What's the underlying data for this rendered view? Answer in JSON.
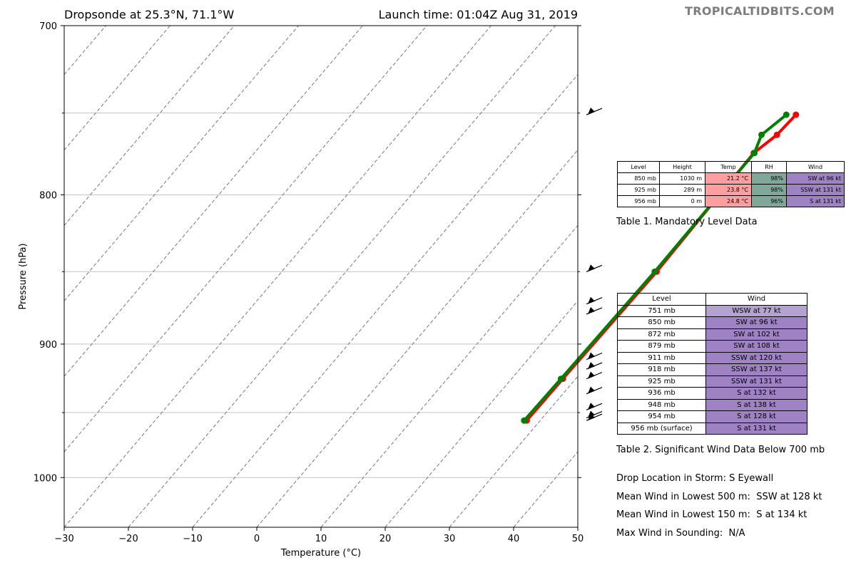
{
  "header": {
    "title_left": "Dropsonde at 25.3°N, 71.1°W",
    "title_right": "Launch time: 01:04Z Aug 31, 2019",
    "brand": "TROPICALTIDBITS.COM"
  },
  "chart_data": {
    "type": "line",
    "xlabel": "Temperature (°C)",
    "ylabel": "Pressure (hPa)",
    "xlim": [
      -30,
      50
    ],
    "ylim": [
      1040,
      700
    ],
    "y_scale": "log",
    "x_ticks": [
      "−30",
      "−20",
      "−10",
      "0",
      "10",
      "20",
      "30",
      "40",
      "50"
    ],
    "y_ticks": [
      "700",
      "800",
      "900",
      "1000"
    ],
    "gridlines_pressure": [
      750,
      800,
      850,
      900,
      950,
      1000
    ],
    "series": [
      {
        "color": "#ff0000",
        "p": [
          751,
          763,
          774,
          850,
          925,
          956
        ],
        "t": [
          29.3,
          29.0,
          27.8,
          28.4,
          28.0,
          27.9
        ]
      },
      {
        "color": "#008000",
        "p": [
          751,
          763,
          774,
          850,
          925,
          956
        ],
        "t": [
          27.8,
          26.6,
          27.9,
          28.1,
          27.7,
          27.5
        ]
      }
    ],
    "wind_barb_levels": [
      751,
      850,
      872,
      879,
      911,
      918,
      925,
      936,
      948,
      954,
      956
    ]
  },
  "table1": {
    "caption": "Table 1. Mandatory Level Data",
    "headers": [
      "Level",
      "Height",
      "Temp",
      "RH",
      "Wind"
    ],
    "rows": [
      {
        "level": "850 mb",
        "height": "1030 m",
        "temp": "21.2 °C",
        "rh": "98%",
        "wind": "SW at 96 kt"
      },
      {
        "level": "925 mb",
        "height": "289 m",
        "temp": "23.8 °C",
        "rh": "98%",
        "wind": "SSW at 131 kt"
      },
      {
        "level": "956 mb",
        "height": "0 m",
        "temp": "24.8 °C",
        "rh": "96%",
        "wind": "S at 131 kt"
      }
    ],
    "colors": {
      "temp": "#ff9e9e",
      "rh": "#7fa89a",
      "wind": "#9e82c4"
    }
  },
  "table2": {
    "caption": "Table 2. Significant Wind Data Below 700 mb",
    "headers": [
      "Level",
      "Wind"
    ],
    "rows": [
      {
        "level": "751 mb",
        "wind": "WSW at 77 kt",
        "color": "#b4a2d1"
      },
      {
        "level": "850 mb",
        "wind": "SW at 96 kt",
        "color": "#9e82c4"
      },
      {
        "level": "872 mb",
        "wind": "SW at 102 kt",
        "color": "#9e82c4"
      },
      {
        "level": "879 mb",
        "wind": "SW at 108 kt",
        "color": "#9e82c4"
      },
      {
        "level": "911 mb",
        "wind": "SSW at 120 kt",
        "color": "#9e82c4"
      },
      {
        "level": "918 mb",
        "wind": "SSW at 137 kt",
        "color": "#9e82c4"
      },
      {
        "level": "925 mb",
        "wind": "SSW at 131 kt",
        "color": "#9e82c4"
      },
      {
        "level": "936 mb",
        "wind": "S at 132 kt",
        "color": "#9e82c4"
      },
      {
        "level": "948 mb",
        "wind": "S at 138 kt",
        "color": "#9e82c4"
      },
      {
        "level": "954 mb",
        "wind": "S at 128 kt",
        "color": "#9e82c4"
      },
      {
        "level": "956 mb (surface)",
        "wind": "S at 131 kt",
        "color": "#9e82c4"
      }
    ]
  },
  "info": {
    "line1": "Drop Location in Storm: S Eyewall",
    "line2": "Mean Wind in Lowest 500 m:  SSW at 128 kt",
    "line3": "Mean Wind in Lowest 150 m:  S at 134 kt",
    "line4": "Max Wind in Sounding:  N/A"
  }
}
